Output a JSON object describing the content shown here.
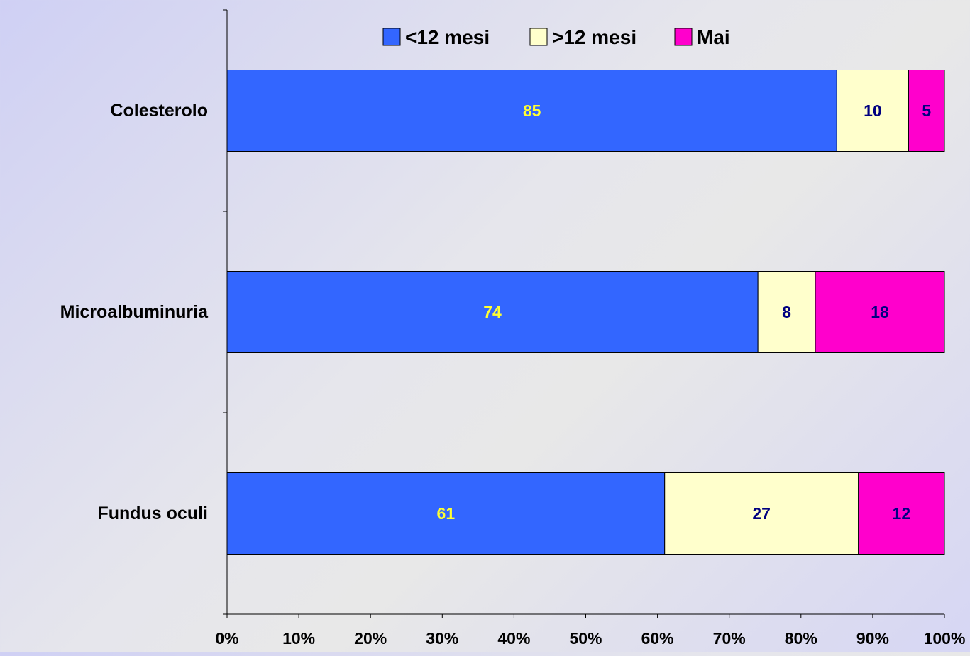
{
  "chart_data": {
    "type": "bar",
    "orientation": "horizontal",
    "stacked": "percent",
    "title": "",
    "xlabel": "",
    "ylabel": "",
    "categories": [
      "Colesterolo",
      "Microalbuminuria",
      "Fundus oculi"
    ],
    "series": [
      {
        "name": "<12 mesi",
        "values": [
          85,
          74,
          61
        ],
        "color": "#3366ff",
        "label_color": "#ffff33"
      },
      {
        "name": ">12 mesi",
        "values": [
          10,
          8,
          27
        ],
        "color": "#ffffcc",
        "label_color": "#000080"
      },
      {
        "name": "Mai",
        "values": [
          5,
          18,
          12
        ],
        "color": "#ff00cc",
        "label_color": "#000080"
      }
    ],
    "xlim": [
      0,
      100
    ],
    "x_ticks": [
      "0%",
      "10%",
      "20%",
      "30%",
      "40%",
      "50%",
      "60%",
      "70%",
      "80%",
      "90%",
      "100%"
    ],
    "legend_position": "top",
    "grid": false
  }
}
